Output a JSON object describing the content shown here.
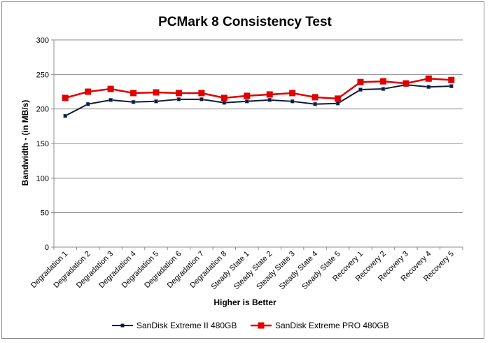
{
  "chart_data": {
    "type": "line",
    "title": "PCMark 8 Consistency Test",
    "xlabel": "Higher is Better",
    "ylabel": "Bandwidth - (in MB/s)",
    "ylim": [
      0,
      300
    ],
    "yticks": [
      0,
      50,
      100,
      150,
      200,
      250,
      300
    ],
    "grid": true,
    "legend_position": "bottom",
    "categories": [
      "Degradation 1",
      "Degradation 2",
      "Degradation 3",
      "Degradation 4",
      "Degradation 5",
      "Degradation 6",
      "Degradation 7",
      "Degradation 8",
      "Steady State 1",
      "Steady State 2",
      "Steady State 3",
      "Steady State 4",
      "Steady State 5",
      "Recovery 1",
      "Recovery 2",
      "Recovery 3",
      "Recovery 4",
      "Recovery 5"
    ],
    "series": [
      {
        "name": "SanDisk Extreme II 480GB",
        "color": "#0d1a3a",
        "marker": "small-square",
        "values": [
          190,
          207,
          213,
          210,
          211,
          214,
          214,
          209,
          211,
          213,
          211,
          207,
          208,
          228,
          229,
          235,
          232,
          233
        ]
      },
      {
        "name": "SanDisk Extreme PRO 480GB",
        "color": "#e00000",
        "marker": "square",
        "values": [
          216,
          225,
          229,
          223,
          224,
          223,
          223,
          216,
          219,
          221,
          223,
          217,
          215,
          239,
          240,
          237,
          244,
          242
        ]
      }
    ]
  }
}
